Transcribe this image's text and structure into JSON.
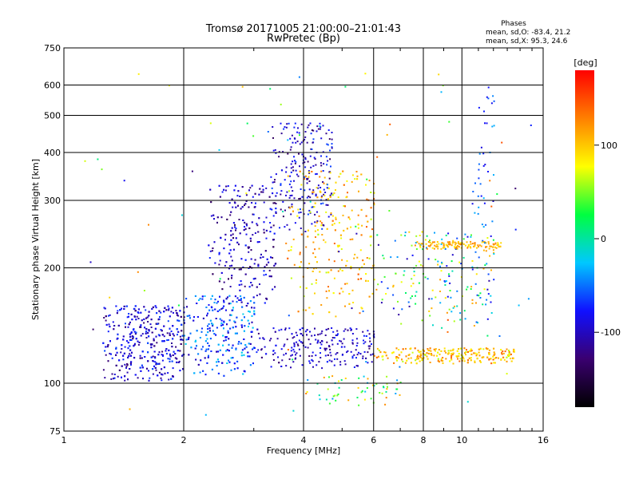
{
  "chart_data": {
    "type": "scatter",
    "title": "Tromsø 20171005 21:00:00–21:01:43",
    "subtitle": "RwPretec (Bp)",
    "xlabel": "Frequency [MHz]",
    "ylabel": "Stationary phase Virtual Height [km]",
    "x_scale": "log",
    "y_scale": "log",
    "xlim": [
      1,
      16
    ],
    "ylim": [
      75,
      750
    ],
    "xticks": [
      1,
      2,
      4,
      6,
      8,
      10,
      16
    ],
    "yticks": [
      75,
      100,
      200,
      300,
      400,
      500,
      600,
      750
    ],
    "grid": true,
    "phases": {
      "heading": "Phases",
      "line_o": "mean, sd,O: -83.4, 21.2",
      "line_x": "mean, sd,X: 95.3, 24.6"
    },
    "colorbar": {
      "label": "[deg]",
      "min": -180,
      "max": 180,
      "ticks": [
        100,
        0,
        -100
      ],
      "colors": [
        "#000000",
        "#3a0070",
        "#1010ff",
        "#00c8ff",
        "#00ff40",
        "#ffff00",
        "#ff8000",
        "#ff0000"
      ]
    },
    "clusters": [
      {
        "f": [
          1.25,
          2.0
        ],
        "h": [
          102,
          160
        ],
        "n": 700,
        "phase": [
          -130,
          -60
        ]
      },
      {
        "f": [
          2.0,
          3.0
        ],
        "h": [
          105,
          170
        ],
        "n": 450,
        "phase": [
          -110,
          -20
        ]
      },
      {
        "f": [
          2.3,
          3.4
        ],
        "h": [
          160,
          330
        ],
        "n": 380,
        "phase": [
          -140,
          -70
        ]
      },
      {
        "f": [
          3.3,
          4.7
        ],
        "h": [
          250,
          480
        ],
        "n": 220,
        "phase": [
          -140,
          -60
        ]
      },
      {
        "f": [
          3.6,
          6.0
        ],
        "h": [
          150,
          360
        ],
        "n": 320,
        "phase": [
          60,
          140
        ]
      },
      {
        "f": [
          3.0,
          6.0
        ],
        "h": [
          110,
          140
        ],
        "n": 260,
        "phase": [
          -130,
          -70
        ]
      },
      {
        "f": [
          6.0,
          13.5
        ],
        "h": [
          113,
          124
        ],
        "n": 380,
        "phase": [
          60,
          140
        ]
      },
      {
        "f": [
          6.0,
          12.0
        ],
        "h": [
          140,
          250
        ],
        "n": 170,
        "phase": [
          -120,
          120
        ]
      },
      {
        "f": [
          7.6,
          12.5
        ],
        "h": [
          225,
          235
        ],
        "n": 120,
        "phase": [
          80,
          130
        ]
      },
      {
        "f": [
          10.5,
          12.0
        ],
        "h": [
          150,
          620
        ],
        "n": 50,
        "phase": [
          -100,
          -30
        ]
      },
      {
        "f": [
          4.0,
          7.0
        ],
        "h": [
          88,
          105
        ],
        "n": 60,
        "phase": [
          -50,
          130
        ]
      },
      {
        "f": [
          1.0,
          15.0
        ],
        "h": [
          80,
          650
        ],
        "n": 90,
        "phase": [
          -150,
          150
        ]
      }
    ]
  }
}
